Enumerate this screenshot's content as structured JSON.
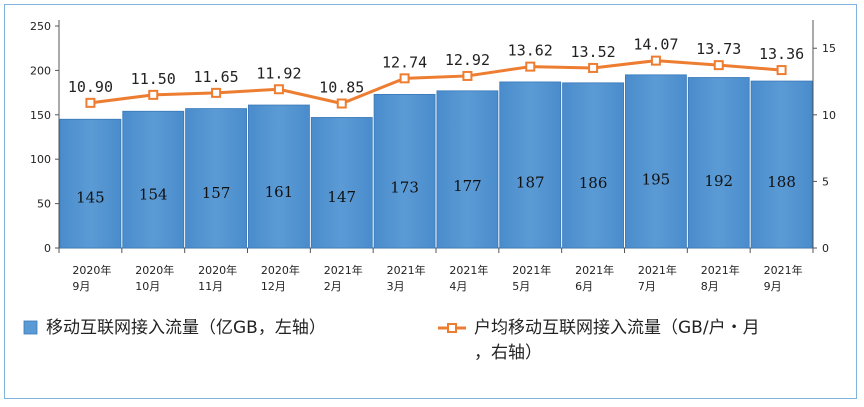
{
  "chart_data": {
    "type": "bar+line",
    "categories": [
      [
        "2020年",
        "9月"
      ],
      [
        "2020年",
        "10月"
      ],
      [
        "2020年",
        "11月"
      ],
      [
        "2020年",
        "12月"
      ],
      [
        "2021年",
        "2月"
      ],
      [
        "2021年",
        "3月"
      ],
      [
        "2021年",
        "4月"
      ],
      [
        "2021年",
        "5月"
      ],
      [
        "2021年",
        "6月"
      ],
      [
        "2021年",
        "7月"
      ],
      [
        "2021年",
        "8月"
      ],
      [
        "2021年",
        "9月"
      ]
    ],
    "series": [
      {
        "name": "移动互联网接入流量（亿GB，左轴）",
        "type": "bar",
        "axis": "left",
        "color": "#5b9bd5",
        "values": [
          145,
          154,
          157,
          161,
          147,
          173,
          177,
          187,
          186,
          195,
          192,
          188
        ]
      },
      {
        "name": "户均移动互联网接入流量（GB/户・月，右轴）",
        "type": "line",
        "axis": "right",
        "color": "#ed7d31",
        "values": [
          10.9,
          11.5,
          11.65,
          11.92,
          10.85,
          12.74,
          12.92,
          13.62,
          13.52,
          14.07,
          13.73,
          13.36
        ],
        "labels": [
          "10.90",
          "11.50",
          "11.65",
          "11.92",
          "10.85",
          "12.74",
          "12.92",
          "13.62",
          "13.52",
          "14.07",
          "13.73",
          "13.36"
        ]
      }
    ],
    "y_left": {
      "ylim": [
        0,
        250
      ],
      "ticks": [
        0,
        50,
        100,
        150,
        200,
        250
      ]
    },
    "y_right": {
      "ylim": [
        0,
        16.67
      ],
      "ticks": [
        0,
        5,
        10,
        15
      ]
    },
    "legend": {
      "placement": "bottom",
      "items": [
        {
          "lines": [
            "移动互联网接入流量（亿GB，左轴）"
          ]
        },
        {
          "lines": [
            "户均移动互联网接入流量（GB/户・月",
            "，右轴）"
          ]
        }
      ]
    },
    "grid": false
  }
}
